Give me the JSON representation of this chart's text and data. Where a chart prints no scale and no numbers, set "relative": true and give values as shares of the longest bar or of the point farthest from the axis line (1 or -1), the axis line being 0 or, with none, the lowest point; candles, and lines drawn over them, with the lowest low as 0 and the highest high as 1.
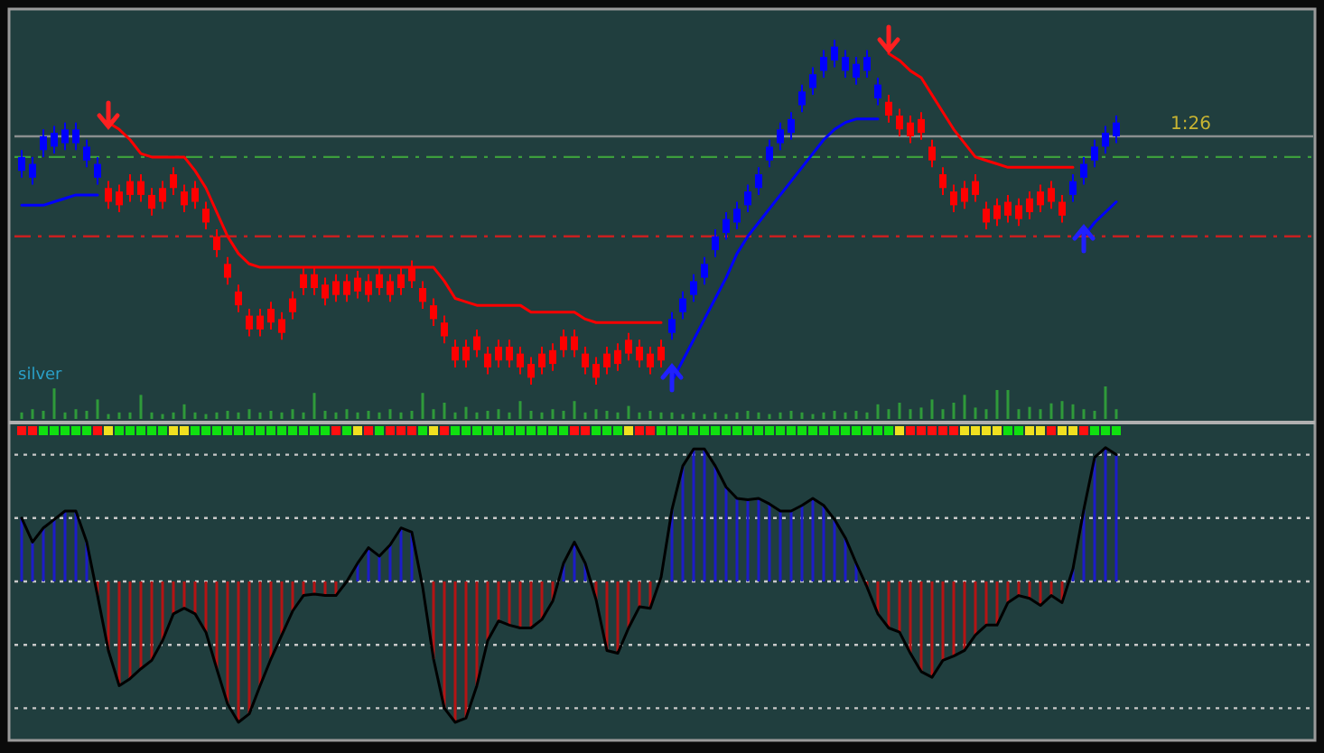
{
  "chart_data": [
    {
      "type": "candlestick",
      "relative": true,
      "categories": [
        null,
        null,
        null,
        null,
        null,
        null,
        null,
        null,
        null,
        null,
        null,
        null,
        null,
        null,
        null,
        null,
        null,
        null,
        null,
        null,
        null,
        null,
        null,
        null,
        null,
        null,
        null,
        null,
        null,
        null,
        null,
        null,
        null,
        null,
        null,
        null,
        null,
        null,
        null,
        null,
        null,
        null,
        null,
        null,
        null,
        null,
        null,
        null,
        null,
        null,
        null,
        null,
        null,
        null,
        null,
        null,
        null,
        null,
        null,
        null,
        null,
        null,
        null,
        null,
        null,
        null,
        null,
        null,
        null,
        null,
        null,
        null,
        null,
        null,
        null,
        null,
        null,
        null,
        null,
        null,
        null,
        null,
        null,
        null,
        null,
        null,
        null,
        null,
        null,
        null,
        null,
        null,
        null,
        null,
        null,
        null,
        null,
        null,
        null,
        null,
        null,
        null
      ],
      "ohlc": [
        [
          0.62,
          0.68,
          0.6,
          0.66
        ],
        [
          0.6,
          0.66,
          0.58,
          0.64
        ],
        [
          0.68,
          0.74,
          0.66,
          0.72
        ],
        [
          0.69,
          0.75,
          0.67,
          0.73
        ],
        [
          0.7,
          0.76,
          0.68,
          0.74
        ],
        [
          0.7,
          0.76,
          0.68,
          0.74
        ],
        [
          0.65,
          0.71,
          0.63,
          0.69
        ],
        [
          0.6,
          0.66,
          0.58,
          0.64
        ],
        [
          0.57,
          0.59,
          0.51,
          0.53
        ],
        [
          0.56,
          0.58,
          0.5,
          0.52
        ],
        [
          0.59,
          0.61,
          0.53,
          0.55
        ],
        [
          0.59,
          0.61,
          0.53,
          0.55
        ],
        [
          0.55,
          0.57,
          0.49,
          0.51
        ],
        [
          0.57,
          0.59,
          0.51,
          0.53
        ],
        [
          0.61,
          0.63,
          0.55,
          0.57
        ],
        [
          0.56,
          0.58,
          0.5,
          0.52
        ],
        [
          0.57,
          0.59,
          0.51,
          0.53
        ],
        [
          0.51,
          0.53,
          0.45,
          0.47
        ],
        [
          0.43,
          0.45,
          0.37,
          0.39
        ],
        [
          0.35,
          0.37,
          0.29,
          0.31
        ],
        [
          0.27,
          0.29,
          0.21,
          0.23
        ],
        [
          0.2,
          0.22,
          0.14,
          0.16
        ],
        [
          0.2,
          0.22,
          0.14,
          0.16
        ],
        [
          0.22,
          0.24,
          0.16,
          0.18
        ],
        [
          0.19,
          0.21,
          0.13,
          0.15
        ],
        [
          0.25,
          0.27,
          0.19,
          0.21
        ],
        [
          0.32,
          0.34,
          0.26,
          0.28
        ],
        [
          0.32,
          0.34,
          0.26,
          0.28
        ],
        [
          0.29,
          0.31,
          0.23,
          0.25
        ],
        [
          0.3,
          0.32,
          0.24,
          0.26
        ],
        [
          0.3,
          0.32,
          0.24,
          0.26
        ],
        [
          0.31,
          0.33,
          0.25,
          0.27
        ],
        [
          0.3,
          0.32,
          0.24,
          0.26
        ],
        [
          0.32,
          0.34,
          0.26,
          0.28
        ],
        [
          0.3,
          0.32,
          0.24,
          0.26
        ],
        [
          0.32,
          0.34,
          0.26,
          0.28
        ],
        [
          0.34,
          0.36,
          0.28,
          0.3
        ],
        [
          0.28,
          0.3,
          0.22,
          0.24
        ],
        [
          0.23,
          0.25,
          0.17,
          0.19
        ],
        [
          0.18,
          0.2,
          0.12,
          0.14
        ],
        [
          0.11,
          0.13,
          0.05,
          0.07
        ],
        [
          0.11,
          0.13,
          0.05,
          0.07
        ],
        [
          0.14,
          0.16,
          0.08,
          0.1
        ],
        [
          0.09,
          0.11,
          0.03,
          0.05
        ],
        [
          0.11,
          0.13,
          0.05,
          0.07
        ],
        [
          0.11,
          0.13,
          0.05,
          0.07
        ],
        [
          0.09,
          0.11,
          0.03,
          0.05
        ],
        [
          0.06,
          0.08,
          0.0,
          0.02
        ],
        [
          0.09,
          0.11,
          0.03,
          0.05
        ],
        [
          0.1,
          0.12,
          0.04,
          0.06
        ],
        [
          0.14,
          0.16,
          0.08,
          0.1
        ],
        [
          0.14,
          0.16,
          0.08,
          0.1
        ],
        [
          0.09,
          0.11,
          0.03,
          0.05
        ],
        [
          0.06,
          0.08,
          0.0,
          0.02
        ],
        [
          0.09,
          0.11,
          0.03,
          0.05
        ],
        [
          0.1,
          0.12,
          0.04,
          0.06
        ],
        [
          0.13,
          0.15,
          0.07,
          0.09
        ],
        [
          0.11,
          0.13,
          0.05,
          0.07
        ],
        [
          0.09,
          0.11,
          0.03,
          0.05
        ],
        [
          0.11,
          0.13,
          0.05,
          0.07
        ],
        [
          0.15,
          0.21,
          0.13,
          0.19
        ],
        [
          0.21,
          0.27,
          0.19,
          0.25
        ],
        [
          0.26,
          0.32,
          0.24,
          0.3
        ],
        [
          0.31,
          0.37,
          0.29,
          0.35
        ],
        [
          0.39,
          0.45,
          0.37,
          0.43
        ],
        [
          0.44,
          0.5,
          0.42,
          0.48
        ],
        [
          0.47,
          0.53,
          0.45,
          0.51
        ],
        [
          0.52,
          0.58,
          0.5,
          0.56
        ],
        [
          0.57,
          0.63,
          0.55,
          0.61
        ],
        [
          0.65,
          0.71,
          0.63,
          0.69
        ],
        [
          0.7,
          0.76,
          0.68,
          0.74
        ],
        [
          0.73,
          0.79,
          0.71,
          0.77
        ],
        [
          0.81,
          0.87,
          0.79,
          0.85
        ],
        [
          0.86,
          0.92,
          0.84,
          0.9
        ],
        [
          0.91,
          0.97,
          0.89,
          0.95
        ],
        [
          0.94,
          1.0,
          0.92,
          0.98
        ],
        [
          0.91,
          0.97,
          0.89,
          0.95
        ],
        [
          0.89,
          0.95,
          0.87,
          0.93
        ],
        [
          0.91,
          0.97,
          0.89,
          0.95
        ],
        [
          0.83,
          0.89,
          0.81,
          0.87
        ],
        [
          0.82,
          0.84,
          0.76,
          0.78
        ],
        [
          0.78,
          0.8,
          0.72,
          0.74
        ],
        [
          0.76,
          0.78,
          0.7,
          0.72
        ],
        [
          0.77,
          0.79,
          0.71,
          0.73
        ],
        [
          0.69,
          0.71,
          0.63,
          0.65
        ],
        [
          0.61,
          0.63,
          0.55,
          0.57
        ],
        [
          0.56,
          0.58,
          0.5,
          0.52
        ],
        [
          0.57,
          0.59,
          0.51,
          0.53
        ],
        [
          0.59,
          0.61,
          0.53,
          0.55
        ],
        [
          0.51,
          0.53,
          0.45,
          0.47
        ],
        [
          0.52,
          0.54,
          0.46,
          0.48
        ],
        [
          0.53,
          0.55,
          0.47,
          0.49
        ],
        [
          0.52,
          0.54,
          0.46,
          0.48
        ],
        [
          0.54,
          0.56,
          0.48,
          0.5
        ],
        [
          0.56,
          0.58,
          0.5,
          0.52
        ],
        [
          0.57,
          0.59,
          0.51,
          0.53
        ],
        [
          0.53,
          0.55,
          0.47,
          0.49
        ],
        [
          0.55,
          0.61,
          0.53,
          0.59
        ],
        [
          0.6,
          0.66,
          0.58,
          0.64
        ],
        [
          0.65,
          0.71,
          0.63,
          0.69
        ],
        [
          0.69,
          0.75,
          0.67,
          0.73
        ],
        [
          0.72,
          0.78,
          0.7,
          0.76
        ]
      ],
      "series": [
        {
          "type": "line",
          "color": "#ff0000",
          "values": [
            null,
            null,
            null,
            null,
            null,
            null,
            null,
            null,
            0.76,
            0.74,
            0.71,
            0.67,
            0.66,
            0.66,
            0.66,
            0.66,
            0.62,
            0.57,
            0.5,
            0.43,
            0.38,
            0.35,
            0.34,
            0.34,
            0.34,
            0.34,
            0.34,
            0.34,
            0.34,
            0.34,
            0.34,
            0.34,
            0.34,
            0.34,
            0.34,
            0.34,
            0.34,
            0.34,
            0.34,
            0.3,
            0.25,
            0.24,
            0.23,
            0.23,
            0.23,
            0.23,
            0.23,
            0.21,
            0.21,
            0.21,
            0.21,
            0.21,
            0.19,
            0.18,
            0.18,
            0.18,
            0.18,
            0.18,
            0.18,
            0.18,
            null,
            null,
            null,
            null,
            null,
            null,
            null,
            null,
            null,
            null,
            null,
            null,
            null,
            null,
            null,
            null,
            null,
            null,
            null,
            null,
            0.96,
            0.94,
            0.91,
            0.89,
            0.84,
            0.79,
            0.74,
            0.7,
            0.66,
            0.65,
            0.64,
            0.63,
            0.63,
            0.63,
            0.63,
            0.63,
            0.63,
            0.63,
            null,
            null,
            null,
            null
          ]
        },
        {
          "type": "line",
          "color": "#0000ff",
          "values": [
            0.52,
            0.52,
            0.52,
            0.53,
            0.54,
            0.55,
            0.55,
            0.55,
            null,
            null,
            null,
            null,
            null,
            null,
            null,
            null,
            null,
            null,
            null,
            null,
            null,
            null,
            null,
            null,
            null,
            null,
            null,
            null,
            null,
            null,
            null,
            null,
            null,
            null,
            null,
            null,
            null,
            null,
            null,
            null,
            null,
            null,
            null,
            null,
            null,
            null,
            null,
            null,
            null,
            null,
            null,
            null,
            null,
            null,
            null,
            null,
            null,
            null,
            null,
            null,
            0.01,
            0.07,
            0.13,
            0.19,
            0.25,
            0.31,
            0.38,
            0.43,
            0.47,
            0.51,
            0.55,
            0.59,
            0.63,
            0.67,
            0.71,
            0.74,
            0.76,
            0.77,
            0.77,
            0.77,
            null,
            null,
            null,
            null,
            null,
            null,
            null,
            null,
            null,
            null,
            null,
            null,
            null,
            null,
            null,
            null,
            null,
            null,
            0.43,
            0.47,
            0.5,
            0.53
          ]
        }
      ],
      "ref_lines": [
        {
          "axis": "y",
          "value": 0.72,
          "color": "#8a8f8f",
          "line_style": "solid"
        },
        {
          "axis": "y",
          "value": 0.66,
          "color": "#3c9e3c",
          "line_style": "dashed"
        },
        {
          "axis": "y",
          "value": 0.43,
          "color": "#c82020",
          "line_style": "dashed"
        }
      ],
      "annotations": [
        "1:26"
      ]
    },
    {
      "type": "bar",
      "relative": true,
      "color": "#2f9a3a",
      "categories": [
        null,
        null,
        null,
        null,
        null,
        null,
        null,
        null,
        null,
        null,
        null,
        null,
        null,
        null,
        null,
        null,
        null,
        null,
        null,
        null,
        null,
        null,
        null,
        null,
        null,
        null,
        null,
        null,
        null,
        null,
        null,
        null,
        null,
        null,
        null,
        null,
        null,
        null,
        null,
        null,
        null,
        null,
        null,
        null,
        null,
        null,
        null,
        null,
        null,
        null,
        null,
        null,
        null,
        null,
        null,
        null,
        null,
        null,
        null,
        null,
        null,
        null,
        null,
        null,
        null,
        null,
        null,
        null,
        null,
        null,
        null,
        null,
        null,
        null,
        null,
        null,
        null,
        null,
        null,
        null,
        null,
        null,
        null,
        null,
        null,
        null,
        null,
        null,
        null,
        null,
        null,
        null,
        null,
        null,
        null,
        null,
        null,
        null,
        null,
        null,
        null,
        null
      ],
      "values": [
        0.2,
        0.3,
        0.25,
        0.94,
        0.2,
        0.3,
        0.25,
        0.6,
        0.15,
        0.2,
        0.2,
        0.74,
        0.2,
        0.15,
        0.2,
        0.45,
        0.2,
        0.15,
        0.2,
        0.25,
        0.2,
        0.3,
        0.2,
        0.25,
        0.2,
        0.3,
        0.2,
        0.8,
        0.25,
        0.2,
        0.3,
        0.2,
        0.25,
        0.2,
        0.3,
        0.2,
        0.25,
        0.8,
        0.3,
        0.5,
        0.2,
        0.37,
        0.2,
        0.25,
        0.3,
        0.2,
        0.55,
        0.25,
        0.2,
        0.3,
        0.25,
        0.55,
        0.2,
        0.3,
        0.25,
        0.2,
        0.4,
        0.2,
        0.25,
        0.2,
        0.2,
        0.15,
        0.2,
        0.15,
        0.2,
        0.15,
        0.2,
        0.25,
        0.2,
        0.15,
        0.2,
        0.25,
        0.2,
        0.15,
        0.2,
        0.25,
        0.2,
        0.25,
        0.2,
        0.45,
        0.3,
        0.5,
        0.3,
        0.35,
        0.6,
        0.3,
        0.5,
        0.74,
        0.35,
        0.3,
        0.89,
        0.89,
        0.3,
        0.37,
        0.3,
        0.48,
        0.55,
        0.45,
        0.3,
        0.25,
        1,
        0.3
      ],
      "annotations": [
        "silver"
      ]
    },
    {
      "type": "bar",
      "relative": true,
      "categories": [
        null,
        null,
        null,
        null,
        null,
        null,
        null,
        null,
        null,
        null,
        null,
        null,
        null,
        null,
        null,
        null,
        null,
        null,
        null,
        null,
        null,
        null,
        null,
        null,
        null,
        null,
        null,
        null,
        null,
        null,
        null,
        null,
        null,
        null,
        null,
        null,
        null,
        null,
        null,
        null,
        null,
        null,
        null,
        null,
        null,
        null,
        null,
        null,
        null,
        null,
        null,
        null,
        null,
        null,
        null,
        null,
        null,
        null,
        null,
        null,
        null,
        null,
        null,
        null,
        null,
        null,
        null,
        null,
        null,
        null,
        null,
        null,
        null,
        null,
        null,
        null,
        null,
        null,
        null,
        null,
        null,
        null,
        null,
        null,
        null,
        null,
        null,
        null,
        null,
        null,
        null,
        null,
        null,
        null,
        null,
        null,
        null,
        null,
        null,
        null,
        null,
        null
      ],
      "series": [
        {
          "type": "bar",
          "values": [
            0.45,
            0.28,
            0.38,
            0.44,
            0.5,
            0.5,
            0.28,
            -0.1,
            -0.49,
            -0.74,
            -0.69,
            -0.62,
            -0.56,
            -0.42,
            -0.23,
            -0.19,
            -0.23,
            -0.36,
            -0.62,
            -0.87,
            -1,
            -0.94,
            -0.74,
            -0.55,
            -0.38,
            -0.21,
            -0.1,
            -0.09,
            -0.1,
            -0.1,
            0,
            0.13,
            0.24,
            0.18,
            0.26,
            0.38,
            0.35,
            null,
            -0.55,
            -0.9,
            -1,
            -0.97,
            -0.74,
            -0.42,
            -0.28,
            -0.31,
            -0.33,
            -0.33,
            -0.27,
            -0.14,
            0.13,
            0.28,
            0.13,
            -0.13,
            -0.49,
            -0.51,
            -0.33,
            -0.18,
            -0.19,
            null,
            0.51,
            0.82,
            0.94,
            0.94,
            0.82,
            0.67,
            0.59,
            0.58,
            0.59,
            0.55,
            0.5,
            0.5,
            0.54,
            0.59,
            0.54,
            0.44,
            0.31,
            0.13,
            -0.04,
            -0.23,
            -0.33,
            -0.36,
            -0.51,
            -0.64,
            -0.68,
            -0.56,
            -0.53,
            -0.49,
            -0.38,
            -0.31,
            -0.31,
            -0.15,
            -0.1,
            -0.12,
            -0.17,
            -0.1,
            -0.15,
            0.09,
            0.51,
            0.88,
            0.95,
            0.9
          ],
          "colors": [
            "#1c1cc8",
            "#1c1cc8",
            "#1c1cc8",
            "#1c1cc8",
            "#1c1cc8",
            "#1c1cc8",
            "#1c1cc8",
            "#b41414",
            "#b41414",
            "#b41414",
            "#b41414",
            "#b41414",
            "#b41414",
            "#b41414",
            "#b41414",
            "#b41414",
            "#b41414",
            "#b41414",
            "#b41414",
            "#b41414",
            "#b41414",
            "#b41414",
            "#b41414",
            "#b41414",
            "#b41414",
            "#b41414",
            "#b41414",
            "#b41414",
            "#b41414",
            "#b41414",
            "#b41414",
            "#1c1cc8",
            "#1c1cc8",
            "#1c1cc8",
            "#1c1cc8",
            "#1c1cc8",
            "#1c1cc8",
            null,
            "#b41414",
            "#b41414",
            "#b41414",
            "#b41414",
            "#b41414",
            "#b41414",
            "#b41414",
            "#b41414",
            "#b41414",
            "#b41414",
            "#b41414",
            "#b41414",
            "#1c1cc8",
            "#1c1cc8",
            "#1c1cc8",
            "#b41414",
            "#b41414",
            "#b41414",
            "#b41414",
            "#b41414",
            "#b41414",
            null,
            "#1c1cc8",
            "#1c1cc8",
            "#1c1cc8",
            "#1c1cc8",
            "#1c1cc8",
            "#1c1cc8",
            "#1c1cc8",
            "#1c1cc8",
            "#1c1cc8",
            "#1c1cc8",
            "#1c1cc8",
            "#1c1cc8",
            "#1c1cc8",
            "#1c1cc8",
            "#1c1cc8",
            "#1c1cc8",
            "#1c1cc8",
            "#1c1cc8",
            "#b41414",
            "#b41414",
            "#b41414",
            "#b41414",
            "#b41414",
            "#b41414",
            "#b41414",
            "#b41414",
            "#b41414",
            "#b41414",
            "#b41414",
            "#b41414",
            "#b41414",
            "#b41414",
            "#b41414",
            "#b41414",
            "#b41414",
            "#b41414",
            "#b41414",
            "#1c1cc8",
            "#1c1cc8",
            "#1c1cc8",
            "#1c1cc8",
            "#1c1cc8"
          ]
        },
        {
          "type": "line",
          "color": "#000000",
          "values": [
            0.45,
            0.28,
            0.38,
            0.44,
            0.5,
            0.5,
            0.28,
            -0.1,
            -0.49,
            -0.74,
            -0.69,
            -0.62,
            -0.56,
            -0.42,
            -0.23,
            -0.19,
            -0.23,
            -0.36,
            -0.62,
            -0.87,
            -1,
            -0.94,
            -0.74,
            -0.55,
            -0.38,
            -0.21,
            -0.1,
            -0.09,
            -0.1,
            -0.1,
            0,
            0.13,
            0.24,
            0.18,
            0.26,
            0.38,
            0.35,
            -0.04,
            -0.55,
            -0.9,
            -1,
            -0.97,
            -0.74,
            -0.42,
            -0.28,
            -0.31,
            -0.33,
            -0.33,
            -0.27,
            -0.14,
            0.13,
            0.28,
            0.13,
            -0.13,
            -0.49,
            -0.51,
            -0.33,
            -0.18,
            -0.19,
            0.03,
            0.51,
            0.82,
            0.94,
            0.94,
            0.82,
            0.67,
            0.59,
            0.58,
            0.59,
            0.55,
            0.5,
            0.5,
            0.54,
            0.59,
            0.54,
            0.44,
            0.31,
            0.13,
            -0.04,
            -0.23,
            -0.33,
            -0.36,
            -0.51,
            -0.64,
            -0.68,
            -0.56,
            -0.53,
            -0.49,
            -0.38,
            -0.31,
            -0.31,
            -0.15,
            -0.1,
            -0.12,
            -0.17,
            -0.1,
            -0.15,
            0.09,
            0.51,
            0.88,
            0.95,
            0.9
          ]
        }
      ],
      "ref_lines": [
        {
          "axis": "y",
          "value": 0.9,
          "color": "#c8c8c8",
          "line_style": "dotted"
        },
        {
          "axis": "y",
          "value": 0.45,
          "color": "#c8c8c8",
          "line_style": "dotted"
        },
        {
          "axis": "y",
          "value": 0,
          "color": "#c8c8c8",
          "line_style": "dotted"
        },
        {
          "axis": "y",
          "value": -0.45,
          "color": "#c8c8c8",
          "line_style": "dotted"
        },
        {
          "axis": "y",
          "value": -0.9,
          "color": "#c8c8c8",
          "line_style": "dotted"
        }
      ]
    }
  ]
}
